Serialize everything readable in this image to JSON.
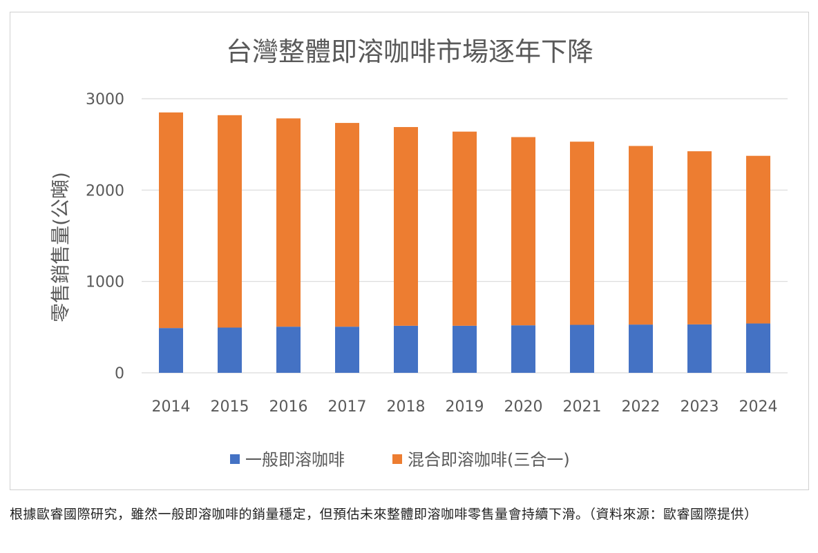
{
  "chart_data": {
    "type": "bar",
    "stacked": true,
    "title": "台灣整體即溶咖啡市場逐年下降",
    "ylabel": "零售銷售量(公噸)",
    "xlabel": "",
    "ylim": [
      0,
      3000
    ],
    "yticks": [
      0,
      1000,
      2000,
      3000
    ],
    "grid": true,
    "legend_position": "bottom",
    "categories": [
      "2014",
      "2015",
      "2016",
      "2017",
      "2018",
      "2019",
      "2020",
      "2021",
      "2022",
      "2023",
      "2024"
    ],
    "series": [
      {
        "name": "一般即溶咖啡",
        "color": "#4472c4",
        "values": [
          490,
          495,
          505,
          505,
          515,
          515,
          520,
          525,
          528,
          530,
          540
        ]
      },
      {
        "name": "混合即溶咖啡(三合一)",
        "color": "#ed7d31",
        "values": [
          2360,
          2325,
          2280,
          2230,
          2175,
          2125,
          2060,
          2005,
          1955,
          1895,
          1835
        ]
      }
    ]
  },
  "caption": "根據歐睿國際研究，雖然一般即溶咖啡的銷量穩定，但預估未來整體即溶咖啡零售量會持續下滑。（資料來源：歐睿國際提供）"
}
